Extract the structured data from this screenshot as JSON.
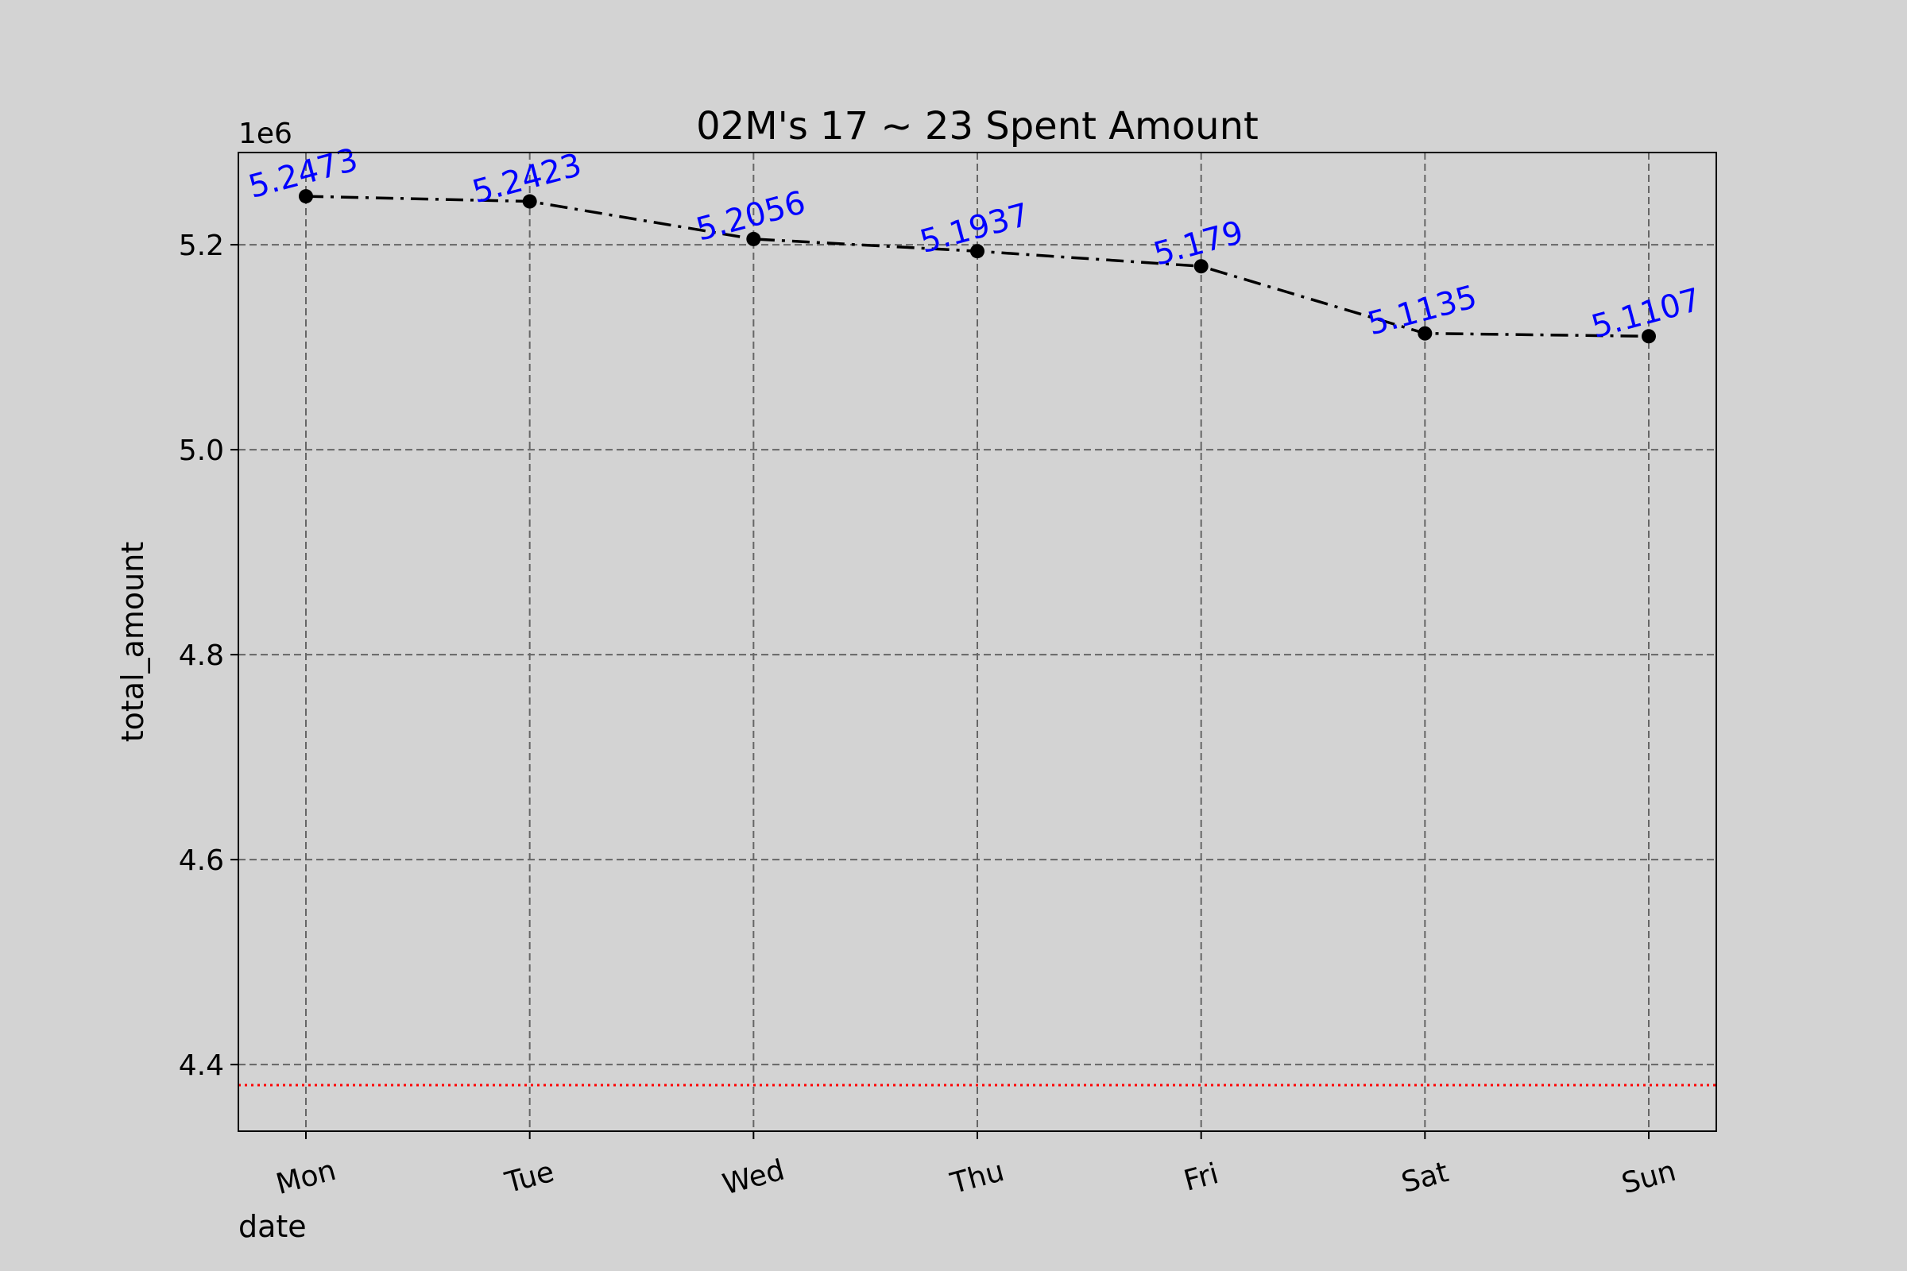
{
  "chart_data": {
    "type": "line",
    "title": "02M's 17 ~ 23 Spent Amount",
    "xlabel": "date",
    "ylabel": "total_amount",
    "offset_label": "1e6",
    "categories": [
      "Mon",
      "Tue",
      "Wed",
      "Thu",
      "Fri",
      "Sat",
      "Sun"
    ],
    "values": [
      5247300,
      5242300,
      5205600,
      5193700,
      5179000,
      5113500,
      5110700
    ],
    "value_labels": [
      "5.2473",
      "5.2423",
      "5.2056",
      "5.1937",
      "5.179",
      "5.1135",
      "5.1107"
    ],
    "yticks": [
      4.4,
      4.6,
      4.8,
      5.0,
      5.2
    ],
    "ytick_labels": [
      "4.4",
      "4.6",
      "4.8",
      "5.0",
      "5.2"
    ],
    "ylim": [
      4335000,
      5290000
    ],
    "reference_line": {
      "value": 4380000,
      "color": "#ff0000",
      "style": "dotted"
    },
    "line_color": "#000000",
    "line_style": "dash-dot",
    "label_color": "#0000ff",
    "background_color": "#d3d3d3",
    "grid": true
  }
}
